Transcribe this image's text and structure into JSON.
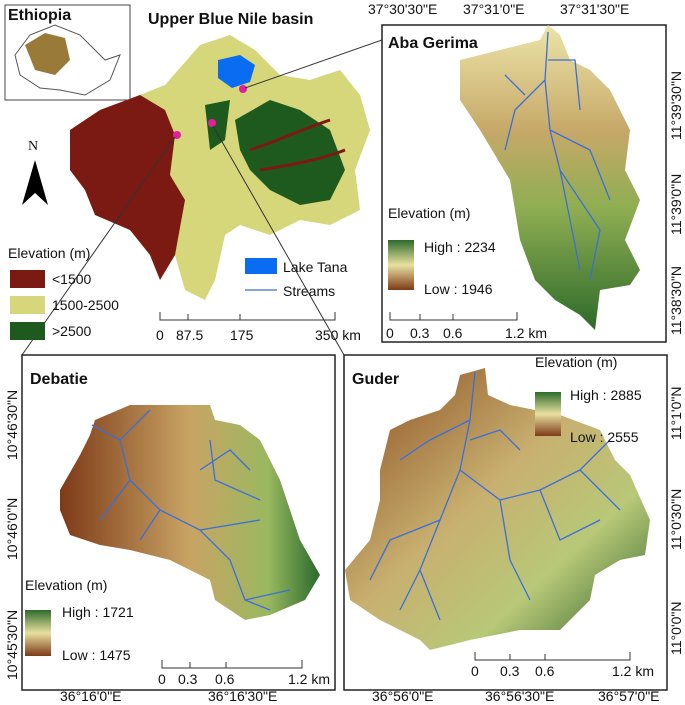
{
  "main": {
    "title": "Upper Blue Nile basin",
    "inset_label": "Ethiopia",
    "north": "N",
    "legend": {
      "title": "Elevation (m)",
      "classes": [
        "<1500",
        "1500-2500",
        ">2500"
      ],
      "lake": "Lake Tana",
      "streams": "Streams"
    },
    "scale": [
      "0",
      "87.5",
      "175",
      "350 km"
    ]
  },
  "panels": [
    {
      "title": "Aba Gerima",
      "lon_labels": [
        "37°30'30\"E",
        "37°31'0\"E",
        "37°31'30\"E"
      ],
      "lat_labels": [
        "11°39'30\"N",
        "11°39'0\"N",
        "11°38'30\"N"
      ],
      "legend": {
        "title": "Elevation (m)",
        "high": "High : 2234",
        "low": "Low : 1946"
      },
      "scale": [
        "0",
        "0.3",
        "0.6",
        "1.2 km"
      ]
    },
    {
      "title": "Debatie",
      "lon_labels": [
        "36°16'0\"E",
        "36°16'30\"E"
      ],
      "lat_labels": [
        "10°46'30\"N",
        "10°46'0\"N",
        "10°45'30\"N"
      ],
      "legend": {
        "title": "Elevation (m)",
        "high": "High : 1721",
        "low": "Low : 1475"
      },
      "scale": [
        "0",
        "0.3",
        "0.6",
        "1.2 km"
      ]
    },
    {
      "title": "Guder",
      "lon_labels": [
        "36°56'0\"E",
        "36°56'30\"E",
        "36°57'0\"E"
      ],
      "lat_labels": [
        "11°1'0\"N",
        "11°0'30\"N",
        "11°0'0\"N"
      ],
      "legend": {
        "title": "Elevation (m)",
        "high": "High : 2885",
        "low": "Low : 2555"
      },
      "scale": [
        "0",
        "0.3",
        "0.6",
        "1.2 km"
      ]
    }
  ]
}
